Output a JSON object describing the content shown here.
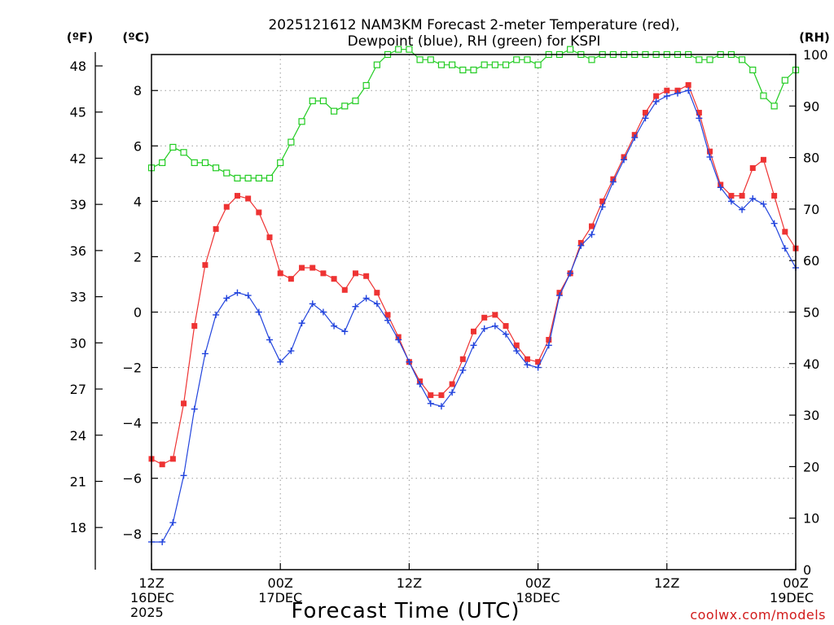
{
  "title_line1": "2025121612 NAM3KM Forecast 2-meter Temperature (red),",
  "title_line2": "Dewpoint (blue), RH (green) for KSPI",
  "unit_f": "(ºF)",
  "unit_c": "(ºC)",
  "unit_rh": "(RH)",
  "xlabel": "Forecast Time (UTC)",
  "credit": "coolwx.com/models",
  "chart_data": {
    "type": "line",
    "title": "2025121612 NAM3KM Forecast 2-meter Temperature (red), Dewpoint (blue), RH (green) for KSPI",
    "xlabel": "Forecast Time (UTC)",
    "x_unit": "forecast hour (from 12Z 16DEC 2025)",
    "xlim": [
      0,
      60
    ],
    "x": [
      0,
      1,
      2,
      3,
      4,
      5,
      6,
      7,
      8,
      9,
      10,
      11,
      12,
      13,
      14,
      15,
      16,
      17,
      18,
      19,
      20,
      21,
      22,
      23,
      24,
      25,
      26,
      27,
      28,
      29,
      30,
      31,
      32,
      33,
      34,
      35,
      36,
      37,
      38,
      39,
      40,
      41,
      42,
      43,
      44,
      45,
      46,
      47,
      48,
      49,
      50,
      51,
      52,
      53,
      54,
      55,
      56,
      57,
      58,
      59,
      60
    ],
    "x_ticks": [
      {
        "hour": 0,
        "label": [
          "12Z",
          "16DEC",
          "2025"
        ]
      },
      {
        "hour": 12,
        "label": [
          "00Z",
          "17DEC"
        ]
      },
      {
        "hour": 24,
        "label": [
          "12Z"
        ]
      },
      {
        "hour": 36,
        "label": [
          "00Z",
          "18DEC"
        ]
      },
      {
        "hour": 48,
        "label": [
          "12Z"
        ]
      },
      {
        "hour": 60,
        "label": [
          "00Z",
          "19DEC"
        ]
      }
    ],
    "y_left_c": {
      "label": "(ºC)",
      "ylim": [
        -9.3,
        9.3
      ],
      "ticks": [
        -8,
        -6,
        -4,
        -2,
        0,
        2,
        4,
        6,
        8
      ],
      "tick_labels": [
        "−8",
        "−6",
        "−4",
        "−2",
        "0",
        "2",
        "4",
        "6",
        "8"
      ]
    },
    "y_left_f": {
      "label": "(ºF)",
      "ticks": [
        18,
        21,
        24,
        27,
        30,
        33,
        36,
        39,
        42,
        45,
        48
      ]
    },
    "y_right_rh": {
      "label": "(RH)",
      "ylim": [
        0,
        100
      ],
      "ticks": [
        0,
        10,
        20,
        30,
        40,
        50,
        60,
        70,
        80,
        90,
        100
      ]
    },
    "series": [
      {
        "name": "Temperature",
        "units": "C",
        "color": "#ee3333",
        "marker": "filled-square",
        "values": [
          -5.3,
          -5.5,
          -5.3,
          -3.3,
          -0.5,
          1.7,
          3.0,
          3.8,
          4.2,
          4.1,
          3.6,
          2.7,
          1.4,
          1.2,
          1.6,
          1.6,
          1.4,
          1.2,
          0.8,
          1.4,
          1.3,
          0.7,
          -0.1,
          -0.9,
          -1.8,
          -2.5,
          -3.0,
          -3.0,
          -2.6,
          -1.7,
          -0.7,
          -0.2,
          -0.1,
          -0.5,
          -1.2,
          -1.7,
          -1.8,
          -1.0,
          0.7,
          1.4,
          2.5,
          3.1,
          4.0,
          4.8,
          5.6,
          6.4,
          7.2,
          7.8,
          8.0,
          8.0,
          8.2,
          7.2,
          5.8,
          4.6,
          4.2,
          4.2,
          5.2,
          5.5,
          4.2,
          2.9,
          2.3
        ]
      },
      {
        "name": "Dewpoint",
        "units": "C",
        "color": "#2244dd",
        "marker": "plus",
        "values": [
          -8.3,
          -8.3,
          -7.6,
          -5.9,
          -3.5,
          -1.5,
          -0.1,
          0.5,
          0.7,
          0.6,
          0.0,
          -1.0,
          -1.8,
          -1.4,
          -0.4,
          0.3,
          0.0,
          -0.5,
          -0.7,
          0.2,
          0.5,
          0.3,
          -0.3,
          -1.0,
          -1.8,
          -2.6,
          -3.3,
          -3.4,
          -2.9,
          -2.1,
          -1.2,
          -0.6,
          -0.5,
          -0.8,
          -1.4,
          -1.9,
          -2.0,
          -1.2,
          0.6,
          1.4,
          2.4,
          2.8,
          3.8,
          4.7,
          5.5,
          6.3,
          7.0,
          7.6,
          7.8,
          7.9,
          8.0,
          7.0,
          5.6,
          4.5,
          4.0,
          3.7,
          4.1,
          3.9,
          3.2,
          2.3,
          1.6
        ]
      },
      {
        "name": "RH",
        "units": "%",
        "color": "#22cc22",
        "marker": "open-square",
        "values": [
          78,
          79,
          82,
          81,
          79,
          79,
          78,
          77,
          76,
          76,
          76,
          76,
          79,
          83,
          87,
          91,
          91,
          89,
          90,
          91,
          94,
          98,
          100,
          101,
          101,
          99,
          99,
          98,
          98,
          97,
          97,
          98,
          98,
          98,
          99,
          99,
          98,
          100,
          100,
          101,
          100,
          99,
          100,
          100,
          100,
          100,
          100,
          100,
          100,
          100,
          100,
          99,
          99,
          100,
          100,
          99,
          97,
          92,
          90,
          95,
          97
        ]
      }
    ]
  }
}
